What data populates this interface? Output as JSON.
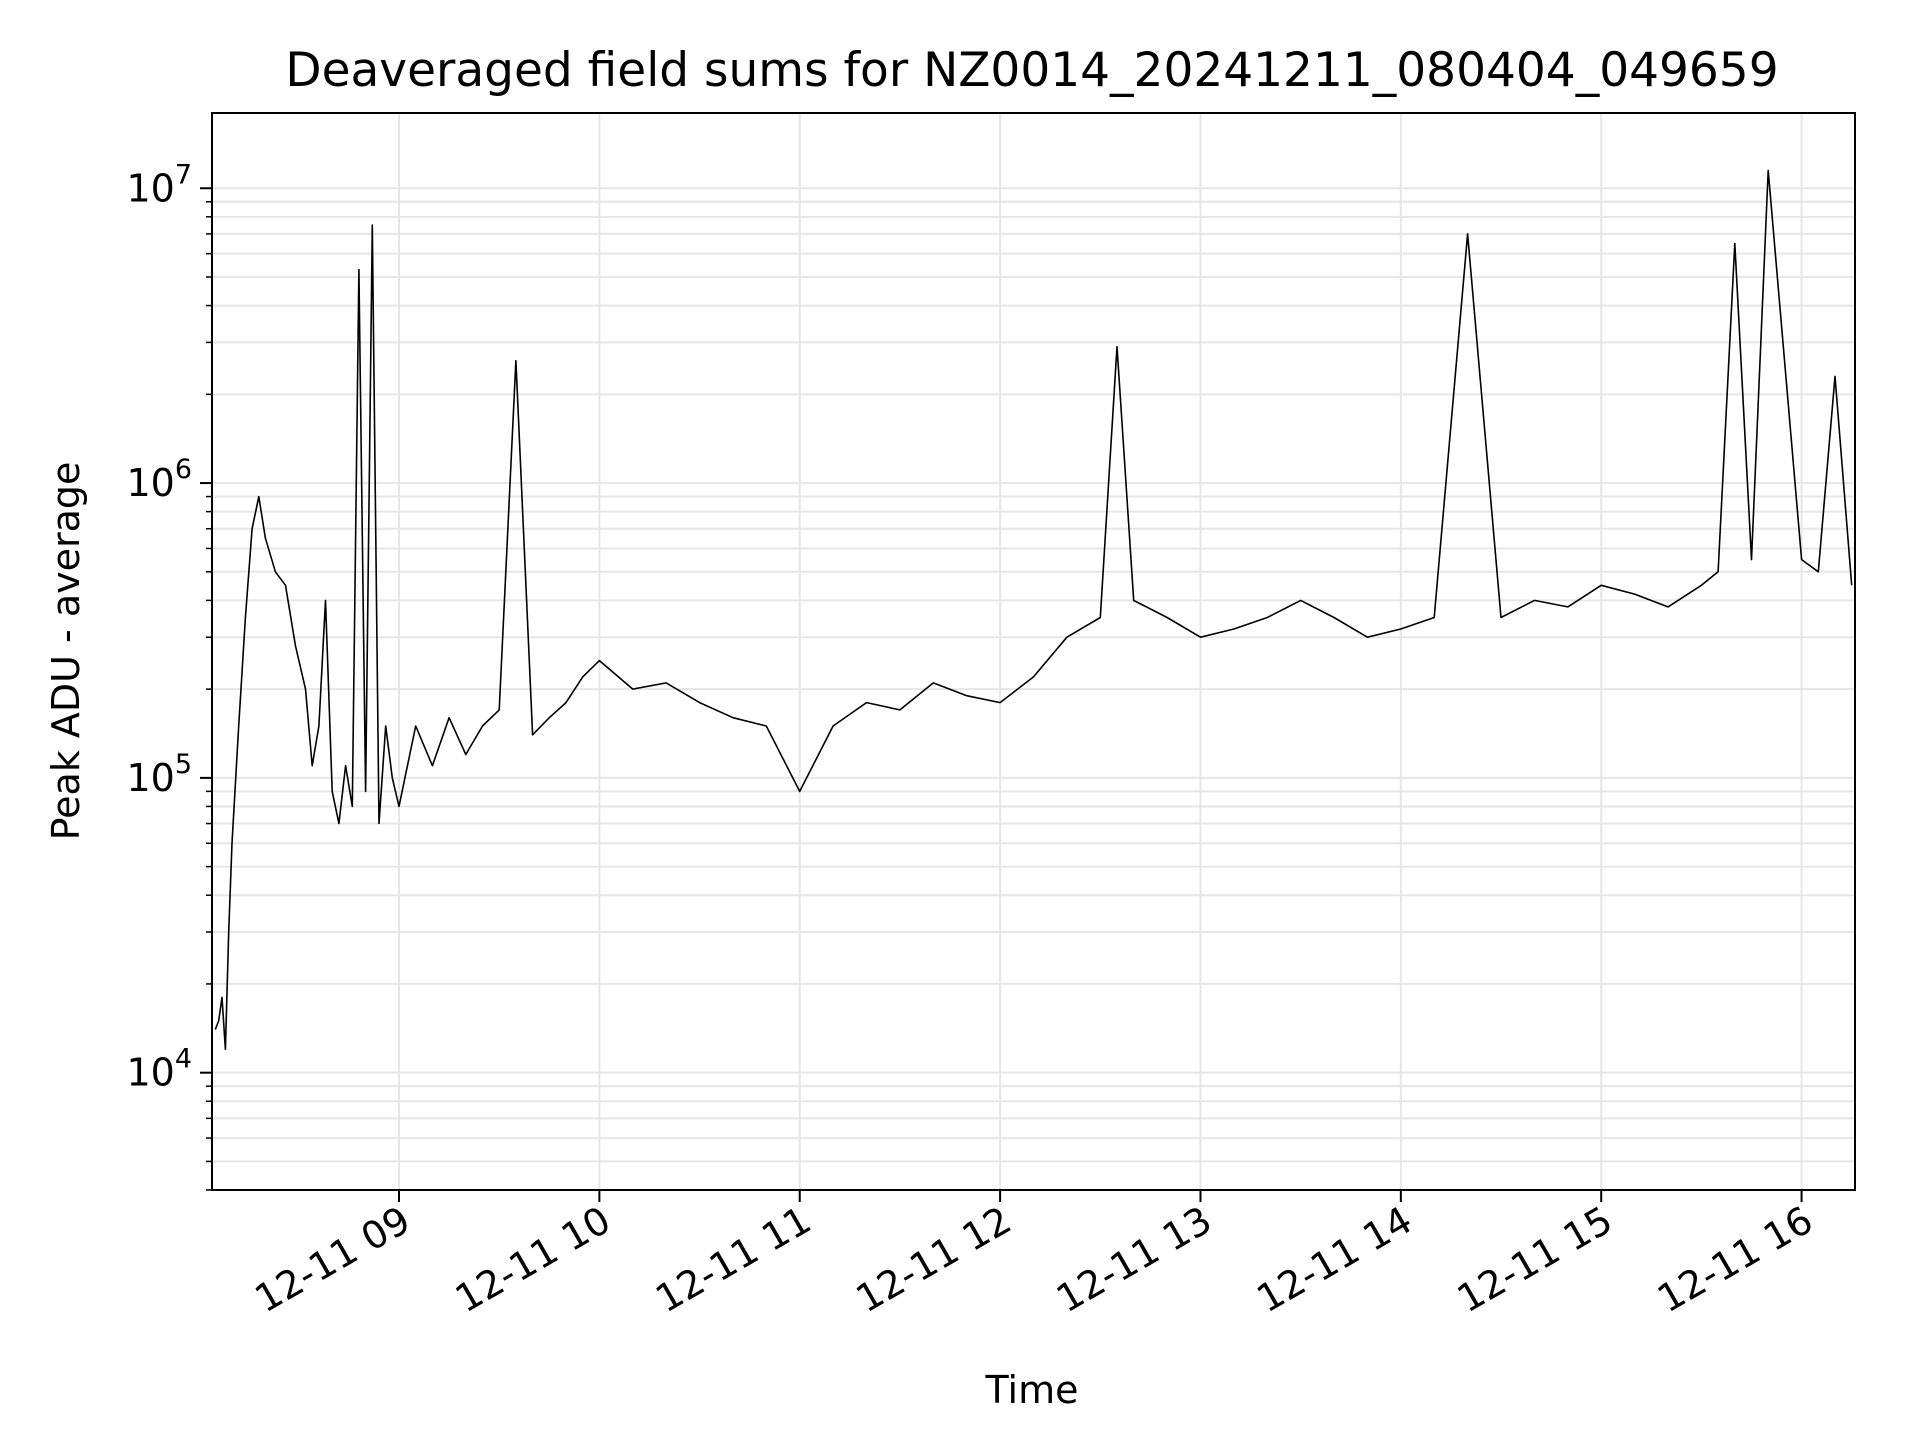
{
  "chart_data": {
    "type": "line",
    "title": "Deaveraged field sums for NZ0014_20241211_080404_049659",
    "xlabel": "Time",
    "ylabel": "Peak ADU - average",
    "yscale": "log",
    "ylim": [
      4000,
      18000000
    ],
    "xlim": [
      "2024-12-11 08:04",
      "2024-12-11 16:16"
    ],
    "grid": true,
    "line_color": "#000000",
    "x_ticks": [
      {
        "value": "2024-12-11 09:00",
        "label": "12-11 09"
      },
      {
        "value": "2024-12-11 10:00",
        "label": "12-11 10"
      },
      {
        "value": "2024-12-11 11:00",
        "label": "12-11 11"
      },
      {
        "value": "2024-12-11 12:00",
        "label": "12-11 12"
      },
      {
        "value": "2024-12-11 13:00",
        "label": "12-11 13"
      },
      {
        "value": "2024-12-11 14:00",
        "label": "12-11 14"
      },
      {
        "value": "2024-12-11 15:00",
        "label": "12-11 15"
      },
      {
        "value": "2024-12-11 16:00",
        "label": "12-11 16"
      }
    ],
    "y_ticks": [
      {
        "value": 10000,
        "base": "10",
        "exp": "4"
      },
      {
        "value": 100000,
        "base": "10",
        "exp": "5"
      },
      {
        "value": 1000000,
        "base": "10",
        "exp": "6"
      },
      {
        "value": 10000000,
        "base": "10",
        "exp": "7"
      }
    ],
    "series": [
      {
        "x": [
          "2024-12-11 08:05",
          "2024-12-11 08:06",
          "2024-12-11 08:07",
          "2024-12-11 08:08",
          "2024-12-11 08:09",
          "2024-12-11 08:10",
          "2024-12-11 08:12",
          "2024-12-11 08:14",
          "2024-12-11 08:16",
          "2024-12-11 08:18",
          "2024-12-11 08:20",
          "2024-12-11 08:23",
          "2024-12-11 08:26",
          "2024-12-11 08:29",
          "2024-12-11 08:32",
          "2024-12-11 08:34",
          "2024-12-11 08:36",
          "2024-12-11 08:38",
          "2024-12-11 08:40",
          "2024-12-11 08:42",
          "2024-12-11 08:44",
          "2024-12-11 08:46",
          "2024-12-11 08:48",
          "2024-12-11 08:50",
          "2024-12-11 08:52",
          "2024-12-11 08:54",
          "2024-12-11 08:56",
          "2024-12-11 08:58",
          "2024-12-11 09:00",
          "2024-12-11 09:05",
          "2024-12-11 09:10",
          "2024-12-11 09:15",
          "2024-12-11 09:20",
          "2024-12-11 09:25",
          "2024-12-11 09:30",
          "2024-12-11 09:35",
          "2024-12-11 09:40",
          "2024-12-11 09:45",
          "2024-12-11 09:50",
          "2024-12-11 09:55",
          "2024-12-11 10:00",
          "2024-12-11 10:10",
          "2024-12-11 10:20",
          "2024-12-11 10:30",
          "2024-12-11 10:40",
          "2024-12-11 10:50",
          "2024-12-11 11:00",
          "2024-12-11 11:10",
          "2024-12-11 11:20",
          "2024-12-11 11:30",
          "2024-12-11 11:40",
          "2024-12-11 11:50",
          "2024-12-11 12:00",
          "2024-12-11 12:10",
          "2024-12-11 12:20",
          "2024-12-11 12:30",
          "2024-12-11 12:35",
          "2024-12-11 12:40",
          "2024-12-11 12:50",
          "2024-12-11 13:00",
          "2024-12-11 13:10",
          "2024-12-11 13:20",
          "2024-12-11 13:30",
          "2024-12-11 13:40",
          "2024-12-11 13:50",
          "2024-12-11 14:00",
          "2024-12-11 14:10",
          "2024-12-11 14:20",
          "2024-12-11 14:30",
          "2024-12-11 14:40",
          "2024-12-11 14:50",
          "2024-12-11 15:00",
          "2024-12-11 15:10",
          "2024-12-11 15:20",
          "2024-12-11 15:30",
          "2024-12-11 15:35",
          "2024-12-11 15:40",
          "2024-12-11 15:45",
          "2024-12-11 15:50",
          "2024-12-11 16:00",
          "2024-12-11 16:05",
          "2024-12-11 16:10",
          "2024-12-11 16:15"
        ],
        "y": [
          14000,
          15000,
          18000,
          12000,
          30000,
          60000,
          150000,
          350000,
          700000,
          900000,
          650000,
          500000,
          450000,
          280000,
          200000,
          110000,
          150000,
          400000,
          90000,
          70000,
          110000,
          80000,
          5300000,
          90000,
          7500000,
          70000,
          150000,
          100000,
          80000,
          150000,
          110000,
          160000,
          120000,
          150000,
          170000,
          2600000,
          140000,
          160000,
          180000,
          220000,
          250000,
          200000,
          210000,
          180000,
          160000,
          150000,
          90000,
          150000,
          180000,
          170000,
          210000,
          190000,
          180000,
          220000,
          300000,
          350000,
          2900000,
          400000,
          350000,
          300000,
          320000,
          350000,
          400000,
          350000,
          300000,
          320000,
          350000,
          7000000,
          350000,
          400000,
          380000,
          450000,
          420000,
          380000,
          450000,
          500000,
          6500000,
          550000,
          11500000,
          550000,
          500000,
          2300000,
          450000
        ]
      }
    ]
  }
}
